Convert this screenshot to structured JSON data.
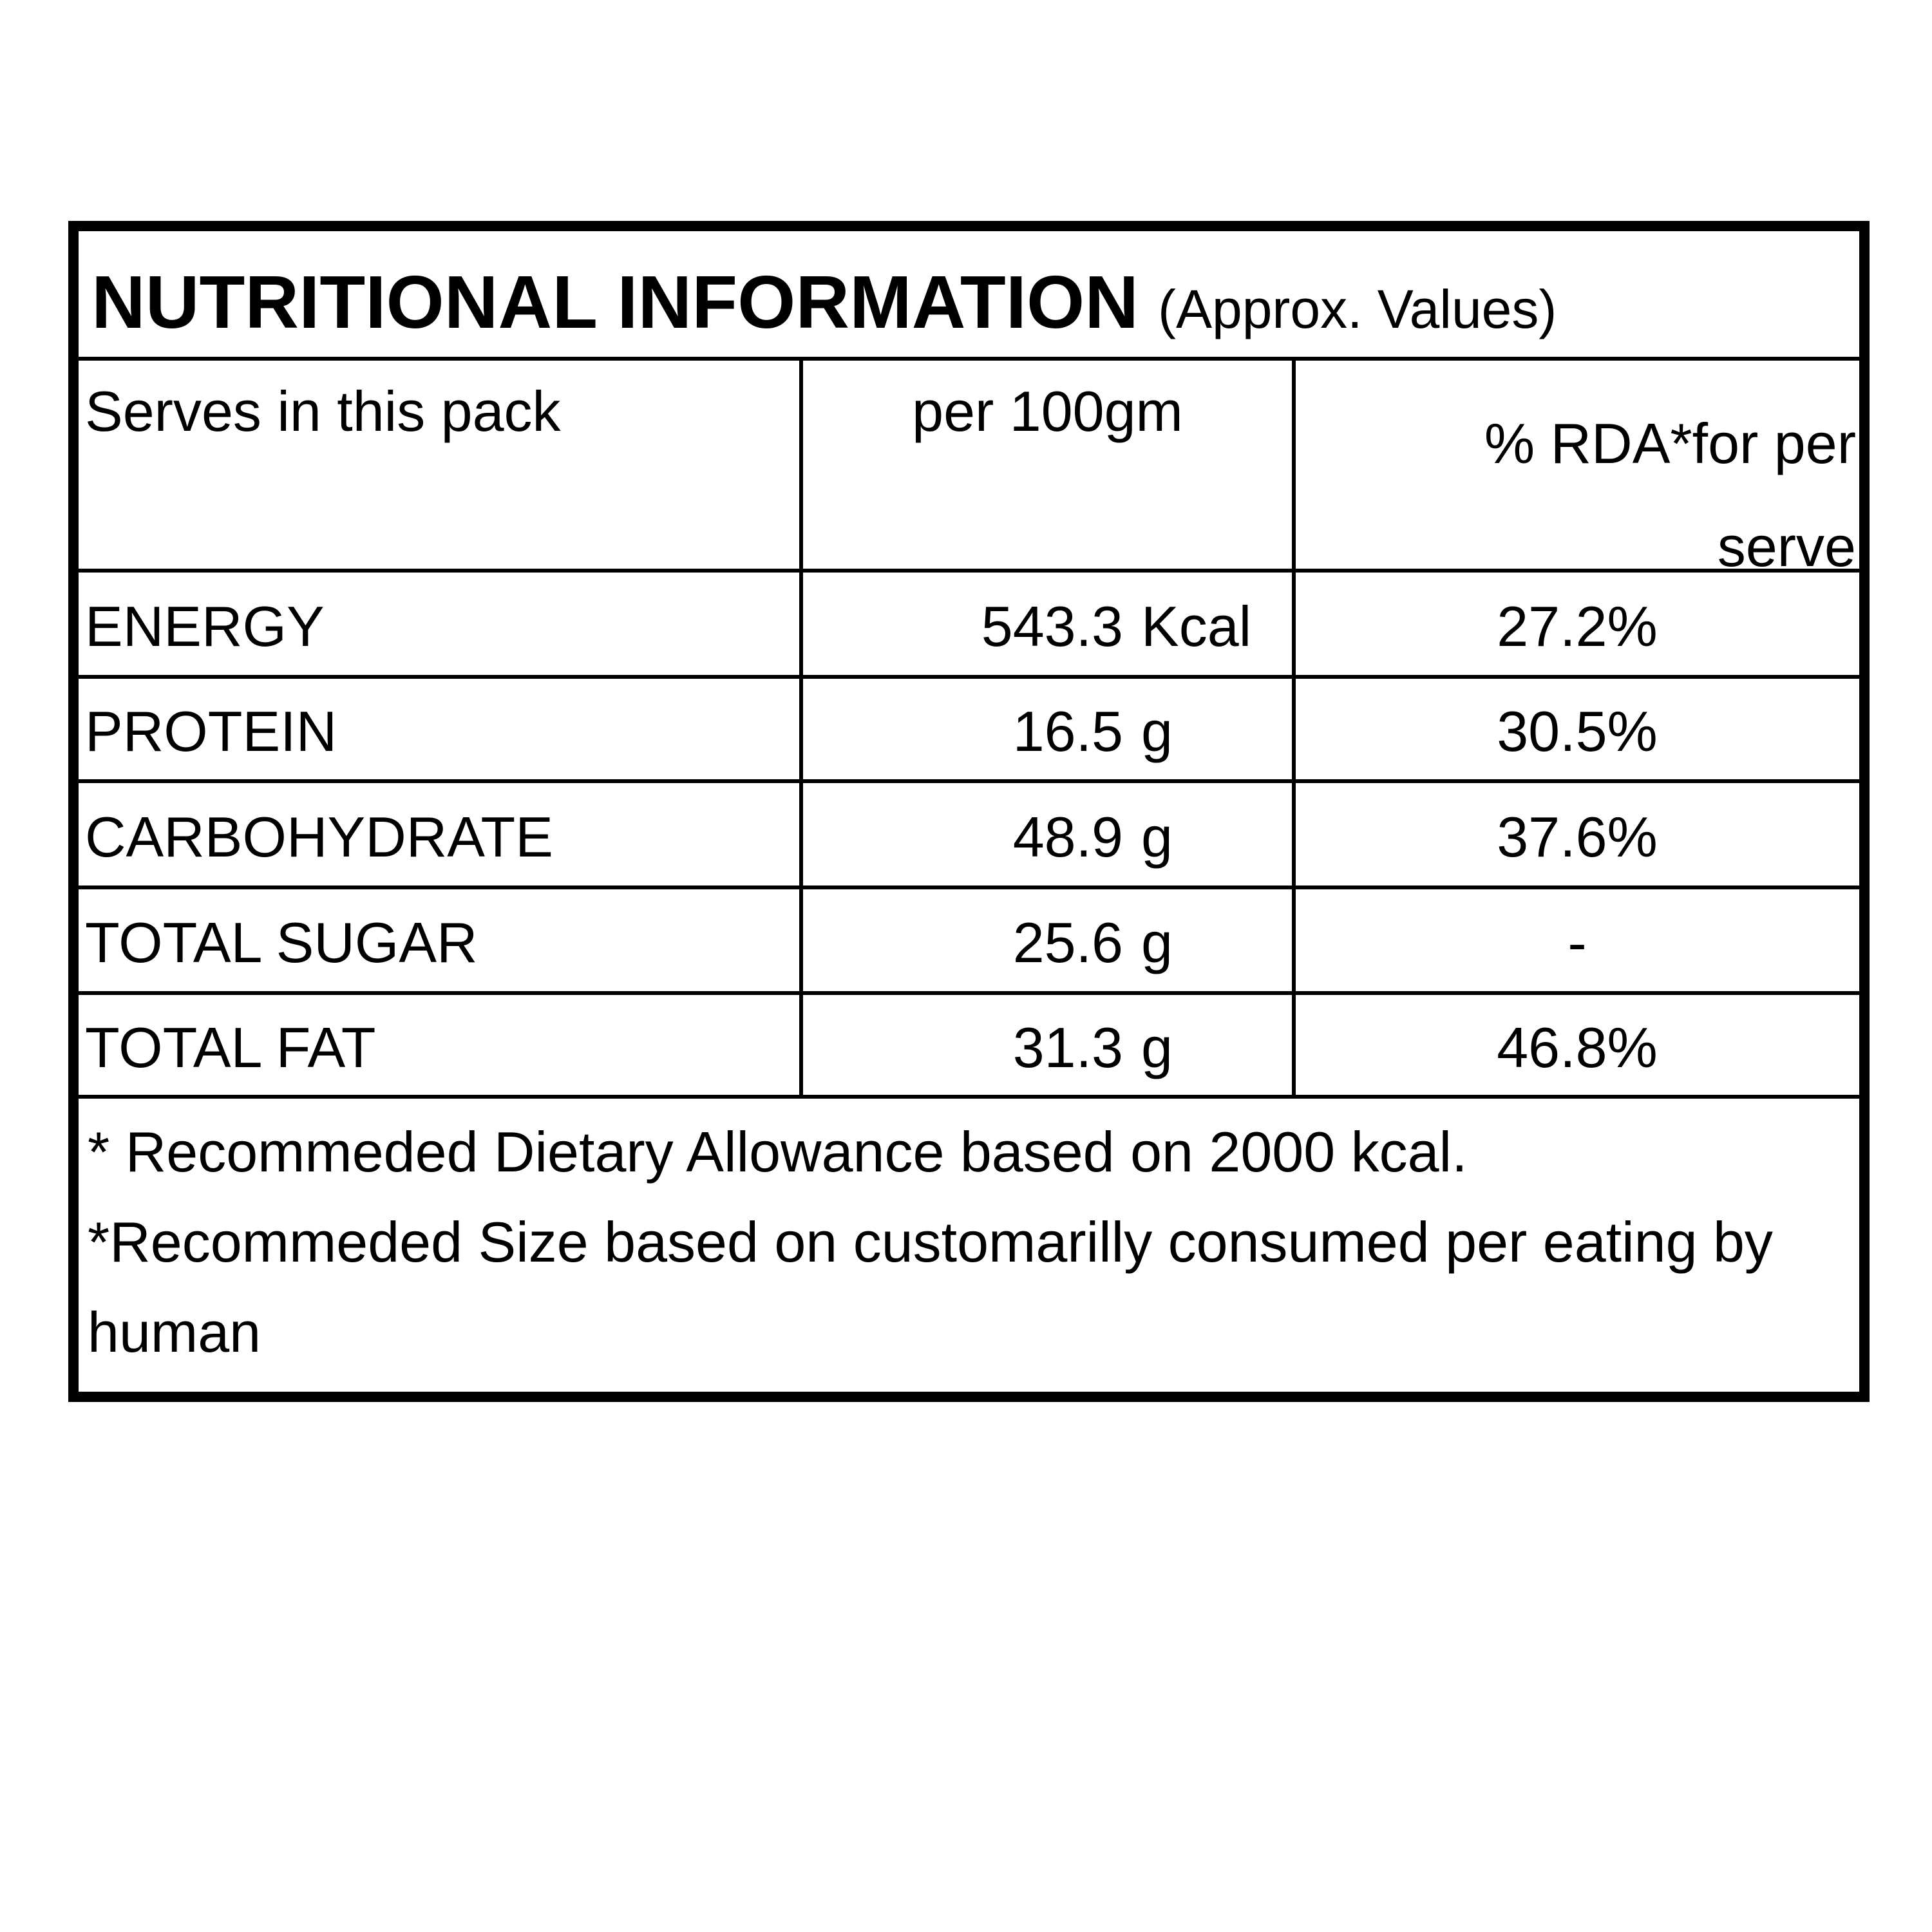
{
  "header": {
    "title": "NUTRITIONAL INFORMATION",
    "subtitle": "(Approx. Values)"
  },
  "table": {
    "columns": [
      "Serves in this pack",
      "per 100gm",
      "% RDA*for per serve"
    ],
    "rows": [
      [
        "ENERGY",
        "543.3",
        "Kcal",
        "27.2%"
      ],
      [
        "PROTEIN",
        "16.5",
        "g",
        "30.5%"
      ],
      [
        "CARBOHYDRATE",
        "48.9",
        "g",
        "37.6%"
      ],
      [
        "TOTAL SUGAR",
        "25.6",
        "g",
        "-"
      ],
      [
        "TOTAL FAT",
        "31.3",
        "g",
        "46.8%"
      ]
    ]
  },
  "footnotes": [
    "* Recommeded Dietary Allowance based on 2000 kcal.",
    "*Recommeded Size based on customarilly consumed per eating by human"
  ]
}
